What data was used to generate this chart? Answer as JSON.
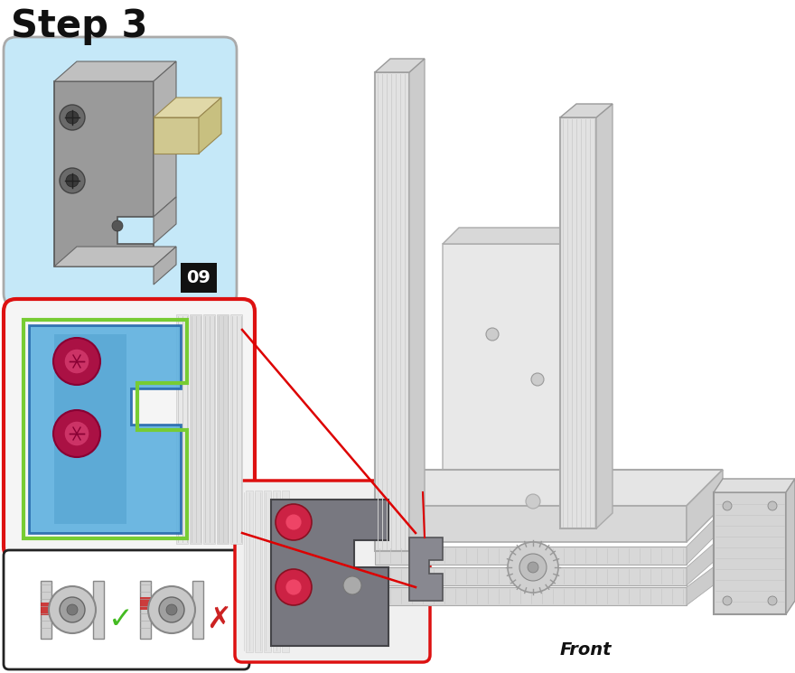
{
  "title": "Step 3",
  "title_fontsize": 30,
  "title_fontweight": "bold",
  "bg_color": "#ffffff",
  "fig_width": 8.8,
  "fig_height": 7.45,
  "dpi": 100,
  "colors": {
    "blue_part": "#5aafdf",
    "blue_part2": "#3a8fc0",
    "green_outline": "#77cc33",
    "red_screw": "#cc2244",
    "red_screw_inner": "#ee4466",
    "gray_part": "#888888",
    "gray_bracket": "#7a7a80",
    "light_gray": "#cccccc",
    "dark_gray": "#555555",
    "aluminum": "#d8d8d8",
    "aluminum_dark": "#b0b0b0",
    "extrusion_face": "#e0e0e0",
    "extrusion_edge": "#999999",
    "red_line": "#dd0000",
    "box_blue_bg": "#c5e8f8",
    "box_red_border": "#dd1111",
    "box_black_border": "#222222"
  }
}
